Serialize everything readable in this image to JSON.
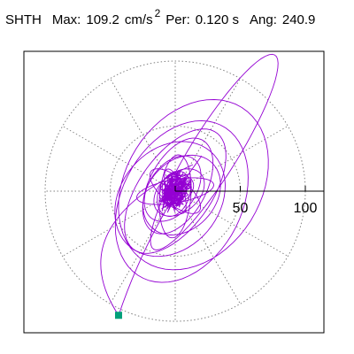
{
  "header": {
    "station": "SHTH",
    "max_label": "Max:",
    "max_value": "109.2",
    "max_unit": "cm/s",
    "max_exponent": "2",
    "per_label": "Per:",
    "per_value": "0.120 s",
    "ang_label": "Ang:",
    "ang_value": "240.9"
  },
  "colors": {
    "trace": "#9400D3",
    "marker": "#00A07A",
    "axis": "#000000",
    "grid": "#808080",
    "frame": "#000000"
  },
  "chart_data": {
    "type": "scatter",
    "description_of_mark": "particle-motion trace on a polar grid",
    "radial_ticks": [
      50,
      100
    ],
    "tick_labels": [
      "50",
      "100"
    ],
    "grid": true,
    "grid_rings": [
      50,
      100
    ],
    "grid_spokes_deg": [
      0,
      30,
      60,
      90,
      120,
      150,
      180,
      210,
      240,
      270,
      300,
      330
    ],
    "max_amplitude": 109.2,
    "angle_deg": 240.9,
    "marker_point": {
      "amplitude": 109.2,
      "angle_deg": 240.9
    }
  }
}
